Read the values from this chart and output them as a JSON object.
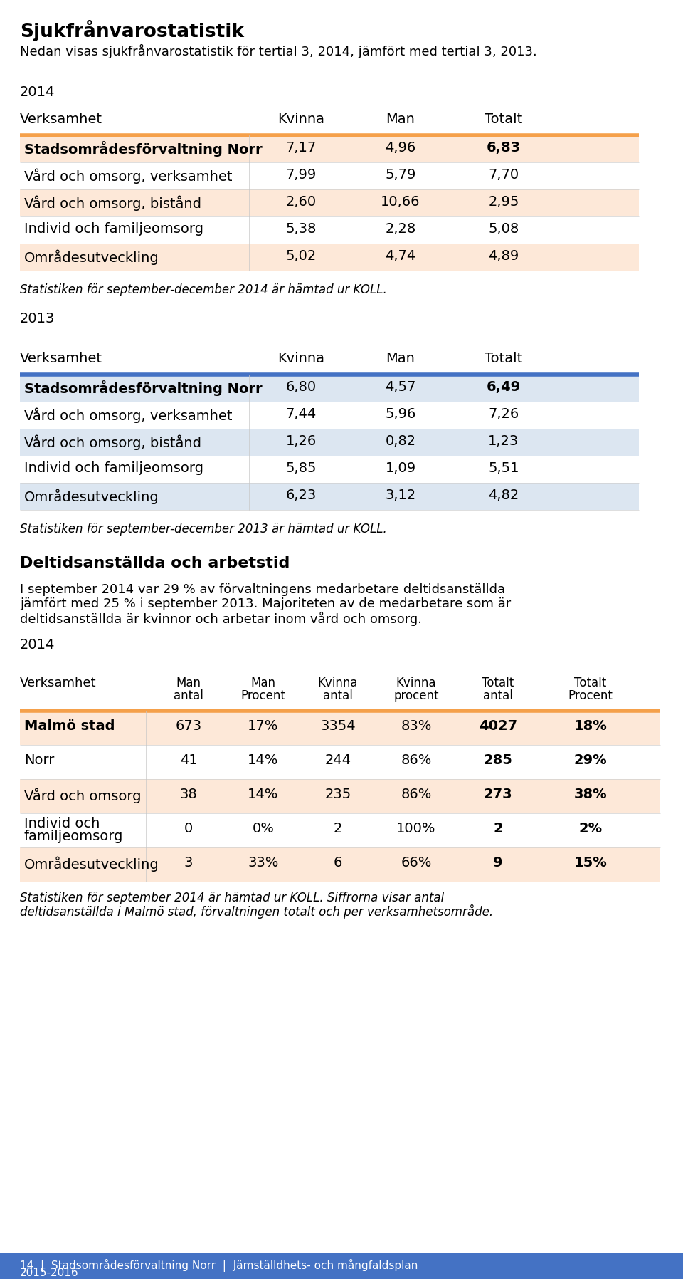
{
  "title": "Sjukfrånvarostatistik",
  "subtitle": "Nedan visas sjukfrånvarostatistik för tertial 3, 2014, jämfört med tertial 3, 2013.",
  "year2014_label": "2014",
  "year2013_label": "2013",
  "table1_header": [
    "Verksamhet",
    "Kvinna",
    "Man",
    "Totalt"
  ],
  "table1_rows": [
    [
      "Stadsområdesförvaltning Norr",
      "7,17",
      "4,96",
      "6,83"
    ],
    [
      "Vård och omsorg, verksamhet",
      "7,99",
      "5,79",
      "7,70"
    ],
    [
      "Vård och omsorg, bistånd",
      "2,60",
      "10,66",
      "2,95"
    ],
    [
      "Individ och familjeomsorg",
      "5,38",
      "2,28",
      "5,08"
    ],
    [
      "Områdesutveckling",
      "5,02",
      "4,74",
      "4,89"
    ]
  ],
  "table1_note": "Statistiken för september-december 2014 är hämtad ur KOLL.",
  "table1_header_color": "#f5a04a",
  "table1_row_colors": [
    "#fde8d8",
    "#ffffff",
    "#fde8d8",
    "#ffffff",
    "#fde8d8"
  ],
  "table2_header": [
    "Verksamhet",
    "Kvinna",
    "Man",
    "Totalt"
  ],
  "table2_rows": [
    [
      "Stadsområdesförvaltning Norr",
      "6,80",
      "4,57",
      "6,49"
    ],
    [
      "Vård och omsorg, verksamhet",
      "7,44",
      "5,96",
      "7,26"
    ],
    [
      "Vård och omsorg, bistånd",
      "1,26",
      "0,82",
      "1,23"
    ],
    [
      "Individ och familjeomsorg",
      "5,85",
      "1,09",
      "5,51"
    ],
    [
      "Områdesutveckling",
      "6,23",
      "3,12",
      "4,82"
    ]
  ],
  "table2_note": "Statistiken för september-december 2013 är hämtad ur KOLL.",
  "table2_header_color": "#4472c4",
  "table2_row_colors": [
    "#dce6f1",
    "#ffffff",
    "#dce6f1",
    "#ffffff",
    "#dce6f1"
  ],
  "section2_title": "Deltidsanställda och arbetstid",
  "section2_line1": "I september 2014 var 29 % av förvaltningens medarbetare deltidsanställda",
  "section2_line2": "jämfört med 25 % i september 2013. Majoriteten av de medarbetare som är",
  "section2_line3": "deltidsanställda är kvinnor och arbetar inom vård och omsorg.",
  "year2014b_label": "2014",
  "table3_header": [
    "Verksamhet",
    "Man\nantal",
    "Man\nProcent",
    "Kvinna\nantal",
    "Kvinna\nprocent",
    "Totalt\nantal",
    "Totalt\nProcent"
  ],
  "table3_rows": [
    [
      "Malmö stad",
      "673",
      "17%",
      "3354",
      "83%",
      "4027",
      "18%"
    ],
    [
      "Norr",
      "41",
      "14%",
      "244",
      "86%",
      "285",
      "29%"
    ],
    [
      "Vård och omsorg",
      "38",
      "14%",
      "235",
      "86%",
      "273",
      "38%"
    ],
    [
      "Individ och\nfamiljeomsorg",
      "0",
      "0%",
      "2",
      "100%",
      "2",
      "2%"
    ],
    [
      "Områdesutveckling",
      "3",
      "33%",
      "6",
      "66%",
      "9",
      "15%"
    ]
  ],
  "table3_header_color": "#f5a04a",
  "table3_row_colors": [
    "#fde8d8",
    "#ffffff",
    "#fde8d8",
    "#ffffff",
    "#fde8d8"
  ],
  "footer_line1": "Statistiken för september 2014 är hämtad ur KOLL. Siffrorna visar antal",
  "footer_line2": "deltidsanställda i Malmö stad, förvaltningen totalt och per verksamhetsområde.",
  "footer_bar_line1": "14  |  Stadsområdesförvaltning Norr  |  Jämställdhets- och mångfaldsplan",
  "footer_bar_line2": "2015-2016",
  "bg_color": "#ffffff",
  "text_color": "#000000"
}
